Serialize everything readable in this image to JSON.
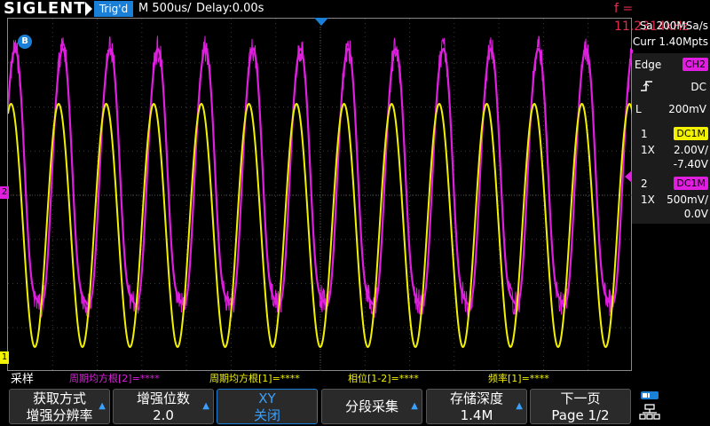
{
  "topbar": {
    "brand": "SIGLENT",
    "trig_state": "Trig'd",
    "timebase": "M 500us/",
    "delay": "Delay:0.00s",
    "frequency": "f = 11.2314kHz"
  },
  "panel": {
    "sample_rate": "Sa 200MSa/s",
    "memory": "Curr 1.40Mpts",
    "trigger": {
      "type": "Edge",
      "source": "CH2",
      "coupling": "DC",
      "level_label": "L",
      "level": "200mV"
    },
    "ch1": {
      "number": "1",
      "coupling": "DC1M",
      "probe": "1X",
      "scale": "2.00V/",
      "offset": "-7.40V"
    },
    "ch2": {
      "number": "2",
      "coupling": "DC1M",
      "probe": "1X",
      "scale": "500mV/",
      "offset": "0.0V"
    }
  },
  "markers": {
    "waveform_b": "B",
    "ch1": "1",
    "ch2": "2"
  },
  "measurements": {
    "title": "采样",
    "items": [
      {
        "label": "周期均方根[2]=****",
        "color": "#e01ee0"
      },
      {
        "label": "周期均方根[1]=****",
        "color": "#f2f200"
      },
      {
        "label": "相位[1-2]=****",
        "color": "#f2f200"
      },
      {
        "label": "频率[1]=****",
        "color": "#f2f200"
      }
    ]
  },
  "menu": {
    "btn1": {
      "line1": "获取方式",
      "line2": "增强分辨率"
    },
    "btn2": {
      "line1": "增强位数",
      "line2": "2.0"
    },
    "btn3": {
      "line1": "XY",
      "line2": "关闭"
    },
    "btn4": {
      "line1": "分段采集"
    },
    "btn5": {
      "line1": "存储深度",
      "line2": "1.4M"
    },
    "btn6": {
      "line1": "下一页",
      "line2": "Page 1/2"
    }
  },
  "colors": {
    "ch1": "#f2f200",
    "ch2": "#e01ee0",
    "accent": "#1a7fd6",
    "freq": "#e02d4e"
  },
  "icons": {
    "run": "run-icon",
    "network": "network-icon",
    "trigger_edge": "rising-edge-icon"
  }
}
